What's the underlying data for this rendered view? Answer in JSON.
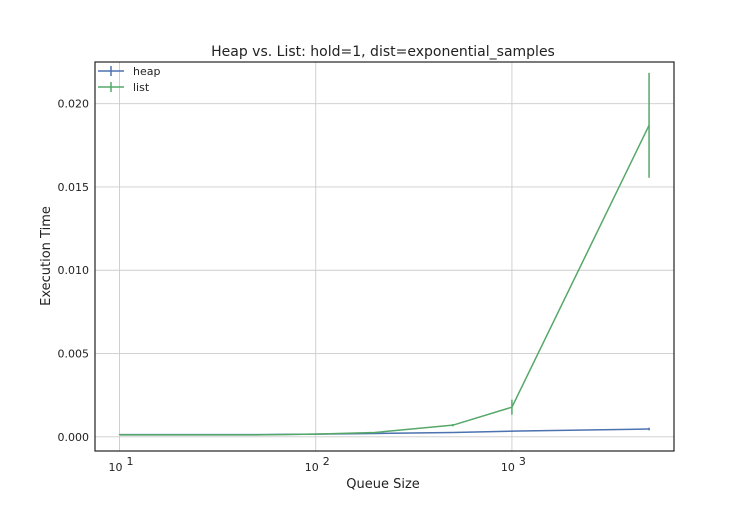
{
  "chart_data": {
    "type": "line",
    "title": "Heap vs. List: hold=1, dist=exponential_samples",
    "xlabel": "Queue Size",
    "ylabel": "Execution Time",
    "xscale": "log",
    "xlim": [
      7.5,
      6700
    ],
    "ylim": [
      -0.00085,
      0.0225
    ],
    "xticks": [
      10,
      100,
      1000
    ],
    "xtick_labels": [
      {
        "base": "10",
        "exp": "1"
      },
      {
        "base": "10",
        "exp": "2"
      },
      {
        "base": "10",
        "exp": "3"
      }
    ],
    "yticks": [
      0.0,
      0.005,
      0.01,
      0.015,
      0.02
    ],
    "ytick_labels": [
      "0.000",
      "0.005",
      "0.010",
      "0.015",
      "0.020"
    ],
    "grid": true,
    "legend_position": "top-left",
    "x": [
      10,
      50,
      100,
      200,
      500,
      1000,
      5000
    ],
    "series": [
      {
        "name": "heap",
        "color": "#4c72b0",
        "values": [
          0.00013,
          0.00013,
          0.00016,
          0.0002,
          0.00026,
          0.00034,
          0.00047
        ],
        "errors": [
          2e-05,
          2e-05,
          2e-05,
          3e-05,
          3e-05,
          4e-05,
          8e-05
        ]
      },
      {
        "name": "list",
        "color": "#55a868",
        "values": [
          0.00012,
          0.00012,
          0.00016,
          0.00026,
          0.0007,
          0.00178,
          0.0187
        ],
        "errors": [
          1e-05,
          1e-05,
          2e-05,
          3e-05,
          7e-05,
          0.00045,
          0.00315
        ]
      }
    ]
  }
}
